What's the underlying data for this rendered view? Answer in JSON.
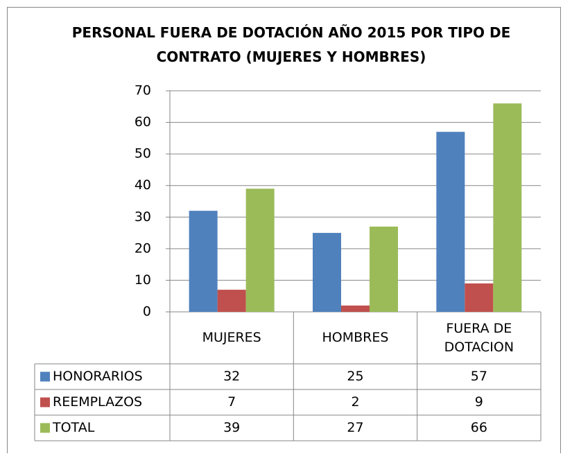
{
  "chart_data": {
    "type": "bar",
    "title": "PERSONAL FUERA DE DOTACIÓN AÑO 2015 POR TIPO DE CONTRATO (MUJERES Y HOMBRES)",
    "categories": [
      "MUJERES",
      "HOMBRES",
      "FUERA DE DOTACION"
    ],
    "series": [
      {
        "name": "HONORARIOS",
        "color": "#4f81bd",
        "values": [
          32,
          25,
          57
        ]
      },
      {
        "name": "REEMPLAZOS",
        "color": "#c0504d",
        "values": [
          7,
          2,
          9
        ]
      },
      {
        "name": "TOTAL",
        "color": "#9bbb59",
        "values": [
          39,
          27,
          66
        ]
      }
    ],
    "ylim": [
      0,
      70
    ],
    "yticks": [
      0,
      10,
      20,
      30,
      40,
      50,
      60,
      70
    ],
    "grid": true,
    "data_table": true
  }
}
